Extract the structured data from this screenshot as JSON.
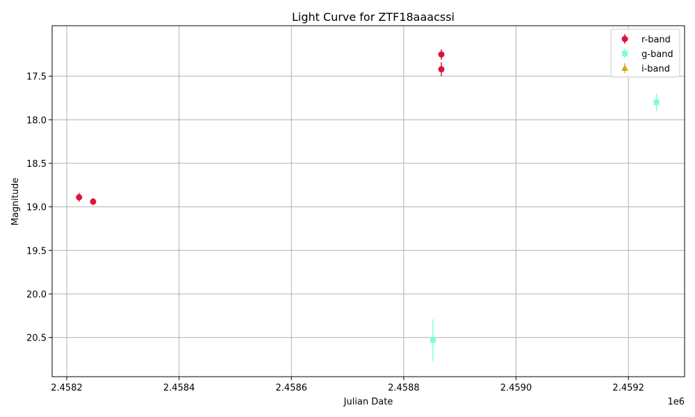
{
  "chart_data": {
    "type": "scatter",
    "title": "Light Curve for ZTF18aaacssi",
    "xlabel": "Julian Date",
    "ylabel": "Magnitude",
    "x_offset_label": "1e6",
    "xlim": [
      2458174,
      2459300
    ],
    "ylim": [
      20.95,
      16.92
    ],
    "y_inverted": true,
    "grid": true,
    "legend_position": "top-right",
    "x_ticks": [
      2458200,
      2458400,
      2458600,
      2458800,
      2459000,
      2459200
    ],
    "x_tick_labels": [
      "2.4582",
      "2.4584",
      "2.4586",
      "2.4588",
      "2.4590",
      "2.4592"
    ],
    "y_ticks": [
      17.5,
      18.0,
      18.5,
      19.0,
      19.5,
      20.0,
      20.5
    ],
    "y_tick_labels": [
      "17.5",
      "18.0",
      "18.5",
      "19.0",
      "19.5",
      "20.0",
      "20.5"
    ],
    "series": [
      {
        "name": "r-band",
        "color": "#dc143c",
        "marker": "circle",
        "points": [
          {
            "x": 2458222,
            "y": 18.89,
            "err": 0.05
          },
          {
            "x": 2458247,
            "y": 18.94,
            "err": 0.04
          },
          {
            "x": 2458867,
            "y": 17.25,
            "err": 0.06
          },
          {
            "x": 2458867,
            "y": 17.42,
            "err": 0.08
          }
        ]
      },
      {
        "name": "g-band",
        "color": "#7fffd4",
        "marker": "square",
        "points": [
          {
            "x": 2458852,
            "y": 20.53,
            "err": 0.24
          },
          {
            "x": 2459250,
            "y": 17.8,
            "err": 0.1
          }
        ]
      },
      {
        "name": "i-band",
        "color": "#daa520",
        "marker": "triangle",
        "points": []
      }
    ]
  }
}
